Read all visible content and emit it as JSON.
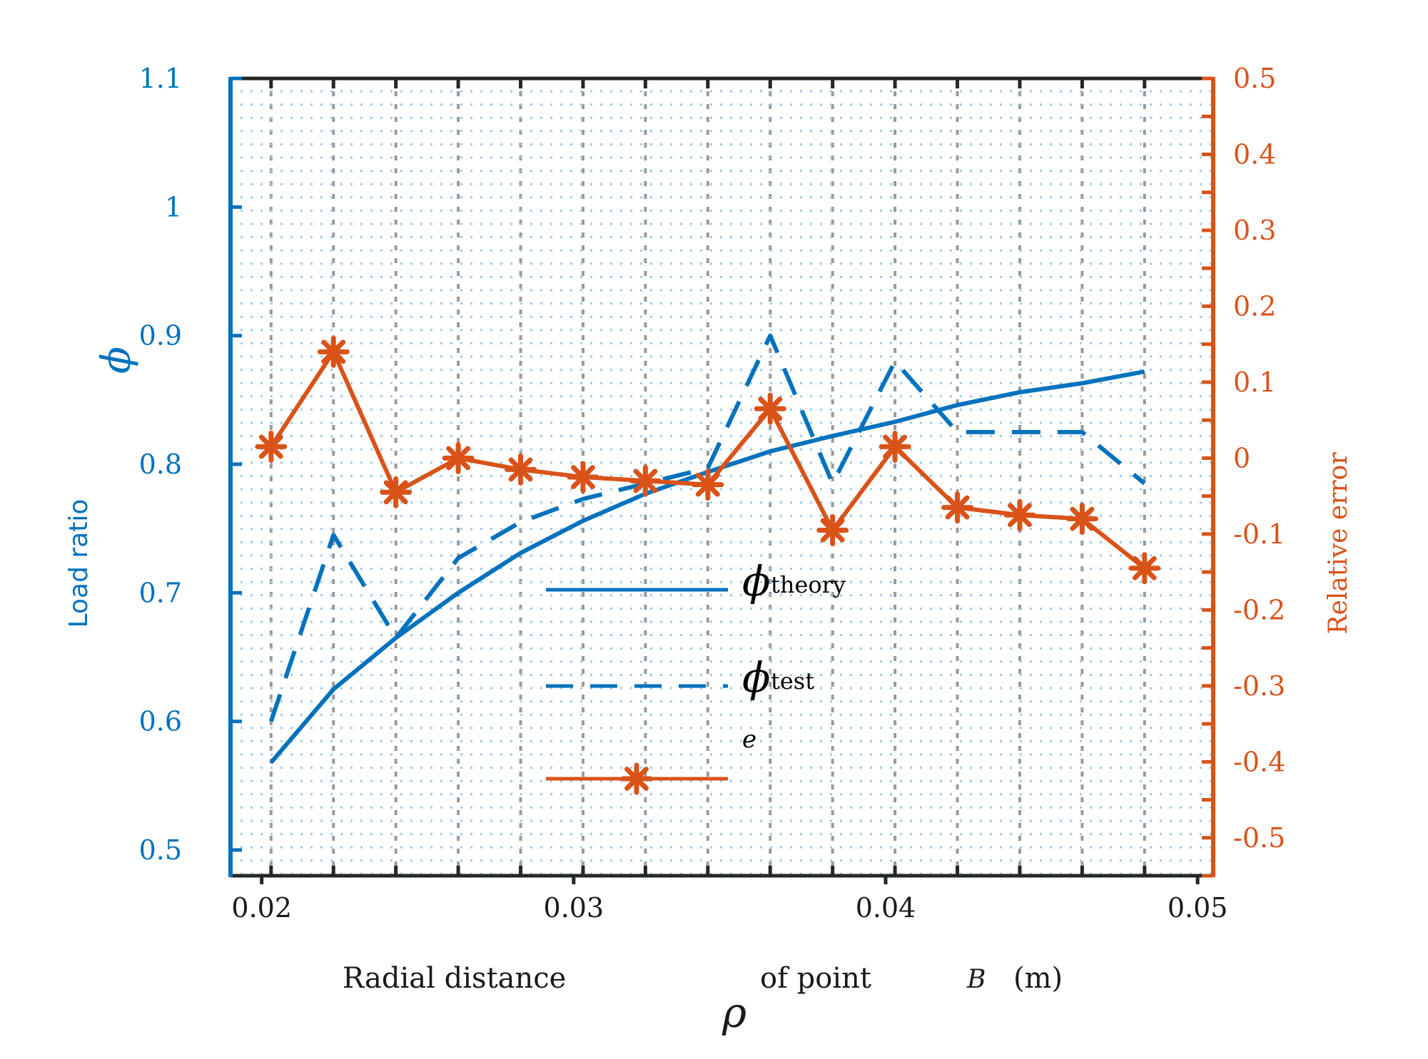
{
  "colors": {
    "left_axis": "#0072BD",
    "right_axis": "#D95319",
    "frame": "#262626",
    "grid": "#9ecae8",
    "grid_major": "#9a9a9a"
  },
  "chart_data": {
    "type": "line",
    "x": [
      0.0203,
      0.0223,
      0.0243,
      0.0263,
      0.0283,
      0.0303,
      0.0323,
      0.0343,
      0.0363,
      0.0383,
      0.0403,
      0.0423,
      0.0443,
      0.0463,
      0.0483
    ],
    "xlim": [
      0.019,
      0.0505
    ],
    "xticks": [
      0.02,
      0.03,
      0.04,
      0.05
    ],
    "xtick_labels": [
      "0.02",
      "0.03",
      "0.04",
      "0.05"
    ],
    "left_axis": {
      "ylim": [
        0.48,
        1.1
      ],
      "ticks": [
        0.5,
        0.6,
        0.7,
        0.8,
        0.9,
        1.0,
        1.1
      ],
      "tick_labels": [
        "0.5",
        "0.6",
        "0.7",
        "0.8",
        "0.9",
        "1",
        "1.1"
      ],
      "label": "Load ratio",
      "symbol": "ϕ"
    },
    "right_axis": {
      "ylim": [
        -0.55,
        0.5
      ],
      "ticks": [
        -0.5,
        -0.4,
        -0.3,
        -0.2,
        -0.1,
        0,
        0.1,
        0.2,
        0.3,
        0.4,
        0.5
      ],
      "tick_labels": [
        "-0.5",
        "-0.4",
        "-0.3",
        "-0.2",
        "-0.1",
        "0",
        "0.1",
        "0.2",
        "0.3",
        "0.4",
        "0.5"
      ],
      "label": "Relative error"
    },
    "series": [
      {
        "name": "phi_theory",
        "axis": "left",
        "style": "solid",
        "values": [
          0.568,
          0.625,
          0.665,
          0.7,
          0.731,
          0.756,
          0.777,
          0.794,
          0.81,
          0.822,
          0.833,
          0.846,
          0.856,
          0.863,
          0.872
        ]
      },
      {
        "name": "phi_test",
        "axis": "left",
        "style": "dashed",
        "values": [
          0.6,
          0.745,
          0.665,
          0.727,
          0.755,
          0.773,
          0.785,
          0.797,
          0.9,
          0.785,
          0.88,
          0.825,
          0.825,
          0.825,
          0.785
        ]
      },
      {
        "name": "e",
        "axis": "right",
        "style": "solid-star",
        "values": [
          0.015,
          0.14,
          -0.045,
          0.0,
          -0.015,
          -0.025,
          -0.03,
          -0.035,
          0.065,
          -0.095,
          0.015,
          -0.065,
          -0.075,
          -0.08,
          -0.145
        ]
      }
    ],
    "legend": {
      "entries": [
        {
          "symbol": "ϕ",
          "subscript": "theory"
        },
        {
          "symbol": "ϕ",
          "subscript": "test"
        },
        {
          "symbol": "e",
          "subscript": ""
        }
      ],
      "placement": "center"
    },
    "xlabel": {
      "part1": "Radial distance",
      "symbol": "ρ",
      "part2": "of point",
      "point": "B",
      "unit": "(m)"
    },
    "grid": true
  }
}
